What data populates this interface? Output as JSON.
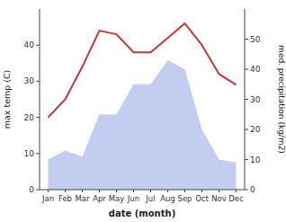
{
  "chart_data": {
    "type": "line",
    "xlabel": "date (month)",
    "ylabel": "max temp (C)",
    "y2label": "med. precipitation (kg/m2)",
    "categories": [
      "Jan",
      "Feb",
      "Mar",
      "Apr",
      "May",
      "Jun",
      "Jul",
      "Aug",
      "Sep",
      "Oct",
      "Nov",
      "Dec"
    ],
    "series": [
      {
        "type": "line",
        "color": "#cc3333",
        "values": [
          20,
          25,
          34,
          44,
          43,
          38,
          38,
          42,
          46,
          40,
          32,
          29
        ]
      },
      {
        "type": "area",
        "axis": "y2",
        "color": "#aab8e8",
        "values": [
          10,
          13,
          11,
          25,
          25,
          35,
          35,
          43,
          40,
          20,
          10,
          9
        ]
      }
    ],
    "ylim": [
      0,
      50
    ],
    "yticks": [
      0,
      10,
      20,
      30,
      40
    ],
    "y2lim": [
      0,
      60
    ],
    "y2ticks": [
      0,
      10,
      20,
      30,
      40,
      50
    ],
    "grid": false
  }
}
